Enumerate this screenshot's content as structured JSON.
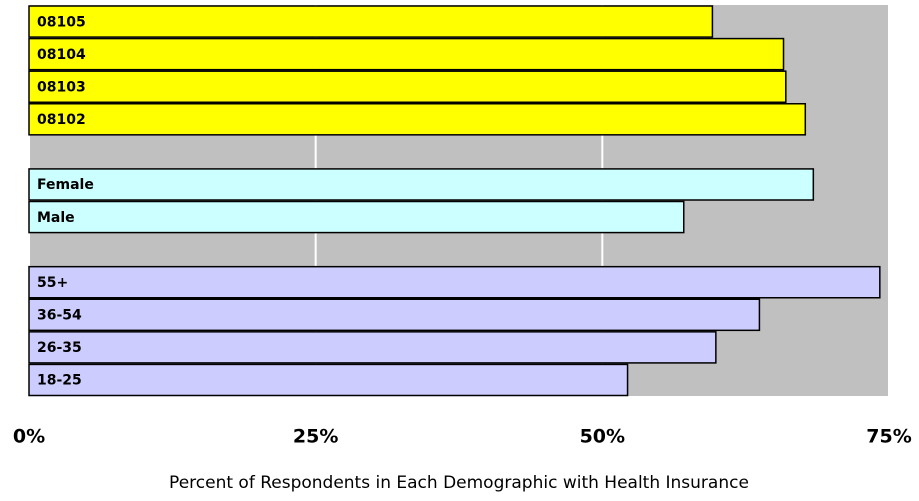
{
  "chart_data": {
    "type": "barh",
    "xlabel": "Percent of Respondents in Each Demographic with Health Insurance",
    "categories": [
      "08105",
      "08104",
      "08103",
      "08102",
      null,
      "Female",
      "Male",
      null,
      "55+",
      "36-54",
      "26-35",
      "18-25"
    ],
    "values": [
      59.6,
      65.8,
      66,
      67.7,
      null,
      68.4,
      57.1,
      null,
      74.2,
      63.7,
      59.9,
      52.2
    ],
    "colors": [
      "#ffff00",
      "#ffff00",
      "#ffff00",
      "#ffff00",
      null,
      "#ccffff",
      "#ccffff",
      null,
      "#ccccff",
      "#ccccff",
      "#ccccff",
      "#ccccff"
    ],
    "xlim": [
      0,
      75
    ],
    "xticks": [
      {
        "value": 0,
        "label": "0%"
      },
      {
        "value": 25,
        "label": "25%"
      },
      {
        "value": 50,
        "label": "50%"
      },
      {
        "value": 75,
        "label": "75%"
      }
    ],
    "grid": true,
    "background": "#c0c0c0",
    "grid_color": "#ffffff"
  }
}
